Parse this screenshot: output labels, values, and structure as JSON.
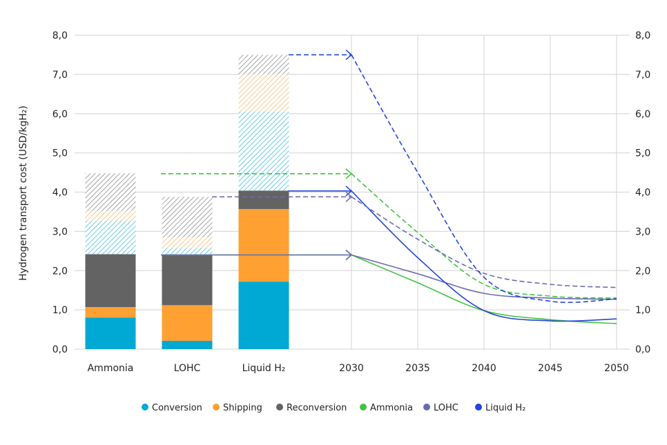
{
  "chart_data": [
    {
      "type": "bar",
      "stacked": true,
      "categories": [
        "Ammonia",
        "LOHC",
        "Liquid H₂"
      ],
      "series": [
        {
          "name": "Conversion",
          "color": "#00a8d4",
          "pattern": "solid",
          "values": [
            0.8,
            0.21,
            1.72
          ]
        },
        {
          "name": "Shipping",
          "color": "#ffa033",
          "pattern": "solid",
          "values": [
            0.27,
            0.91,
            1.85
          ]
        },
        {
          "name": "Reconversion",
          "color": "#636363",
          "pattern": "solid",
          "values": [
            1.35,
            1.28,
            0.47
          ]
        },
        {
          "color": "#00a8d4",
          "pattern": "hatched",
          "values": [
            0.85,
            0.18,
            2.01
          ]
        },
        {
          "color": "#ffa033",
          "pattern": "hatched",
          "values": [
            0.25,
            0.27,
            0.95
          ]
        },
        {
          "color": "#636363",
          "pattern": "hatched",
          "values": [
            0.96,
            1.03,
            0.5
          ]
        }
      ]
    },
    {
      "type": "line",
      "x": [
        2030,
        2035,
        2040,
        2045,
        2050
      ],
      "series": [
        {
          "name": "Ammonia",
          "color": "#3dc43d",
          "style": "solid",
          "values": [
            2.4,
            1.69,
            0.98,
            0.75,
            0.65
          ]
        },
        {
          "name": "LOHC",
          "color": "#6b6bb0",
          "style": "solid",
          "values": [
            2.4,
            1.92,
            1.42,
            1.3,
            1.27
          ]
        },
        {
          "name": "Liquid H₂",
          "color": "#2244dd",
          "style": "solid",
          "values": [
            4.03,
            2.33,
            0.98,
            0.72,
            0.77
          ]
        },
        {
          "color": "#3dc43d",
          "style": "dashed",
          "values": [
            4.47,
            2.97,
            1.65,
            1.35,
            1.3
          ]
        },
        {
          "color": "#6b6bb0",
          "style": "dashed",
          "values": [
            3.88,
            2.8,
            1.93,
            1.65,
            1.57
          ]
        },
        {
          "color": "#2244dd",
          "style": "dashed",
          "values": [
            7.5,
            4.5,
            1.83,
            1.22,
            1.28
          ]
        }
      ]
    }
  ],
  "axes": {
    "ylabel": "Hydrogen transport cost (USD/kgH₂)",
    "ylim": [
      0,
      8
    ],
    "yticks": [
      "0,0",
      "1,0",
      "2,0",
      "3,0",
      "4,0",
      "5,0",
      "6,0",
      "7,0",
      "8,0"
    ],
    "right_axis": true,
    "xtick_labels": [
      "Ammonia",
      "LOHC",
      "Liquid H₂",
      "2030",
      "2035",
      "2040",
      "2045",
      "2050"
    ],
    "grid": true
  },
  "legend": {
    "placement": "bottom",
    "items": [
      {
        "label": "Conversion",
        "color": "#00a8d4"
      },
      {
        "label": "Shipping",
        "color": "#ffa033"
      },
      {
        "label": "Reconversion",
        "color": "#636363"
      },
      {
        "label": "Ammonia",
        "color": "#3dc43d"
      },
      {
        "label": "LOHC",
        "color": "#6b6bb0"
      },
      {
        "label": "Liquid H₂",
        "color": "#2244dd"
      }
    ]
  }
}
